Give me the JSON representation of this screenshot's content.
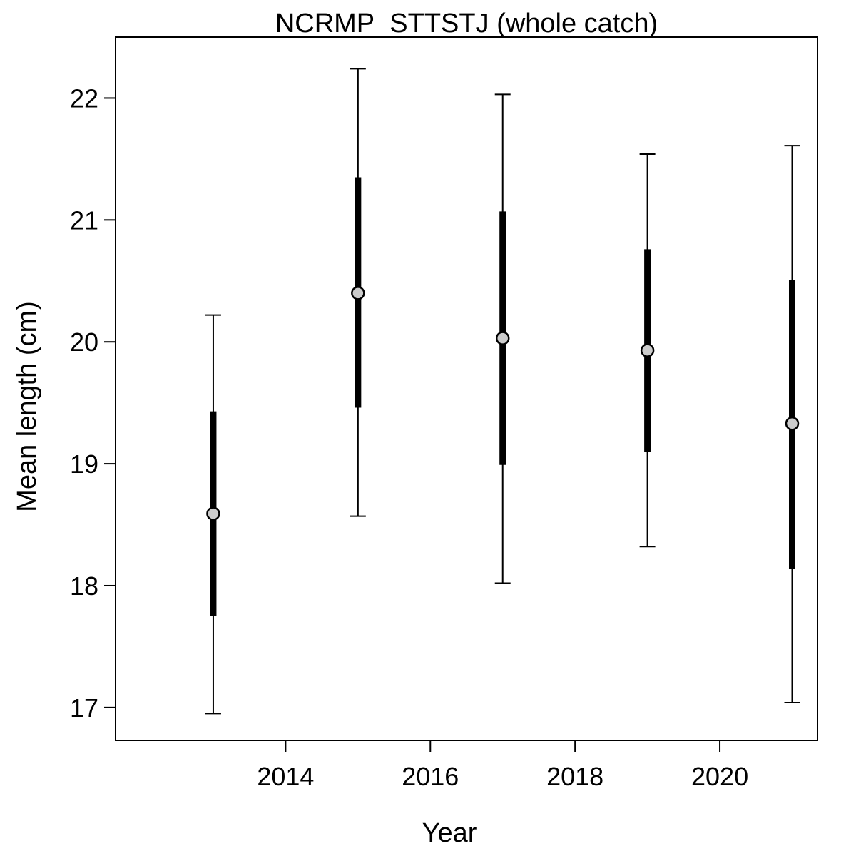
{
  "chart_data": {
    "type": "scatter",
    "title": "NCRMP_STTSTJ (whole catch)",
    "xlabel": "Year",
    "ylabel": "Mean length (cm)",
    "xlim": [
      2011.65,
      2021.35
    ],
    "ylim": [
      16.73,
      22.5
    ],
    "x_ticks": [
      2014,
      2016,
      2018,
      2020
    ],
    "y_ticks": [
      17,
      18,
      19,
      20,
      21,
      22
    ],
    "x_tick_labels": [
      "2014",
      "2016",
      "2018",
      "2020"
    ],
    "y_tick_labels": [
      "17",
      "18",
      "19",
      "20",
      "21",
      "22"
    ],
    "grid": false,
    "point_color": "#cccccc",
    "line_color": "#000000",
    "points": [
      {
        "year": 2013,
        "mean": 18.59,
        "inner_low": 17.75,
        "inner_high": 19.43,
        "outer_low": 16.95,
        "outer_high": 20.22
      },
      {
        "year": 2015,
        "mean": 20.4,
        "inner_low": 19.46,
        "inner_high": 21.35,
        "outer_low": 18.57,
        "outer_high": 22.24
      },
      {
        "year": 2017,
        "mean": 20.03,
        "inner_low": 18.99,
        "inner_high": 21.07,
        "outer_low": 18.02,
        "outer_high": 22.03
      },
      {
        "year": 2019,
        "mean": 19.93,
        "inner_low": 19.1,
        "inner_high": 20.76,
        "outer_low": 18.32,
        "outer_high": 21.54
      },
      {
        "year": 2021,
        "mean": 19.33,
        "inner_low": 18.14,
        "inner_high": 20.51,
        "outer_low": 17.04,
        "outer_high": 21.61
      }
    ]
  }
}
